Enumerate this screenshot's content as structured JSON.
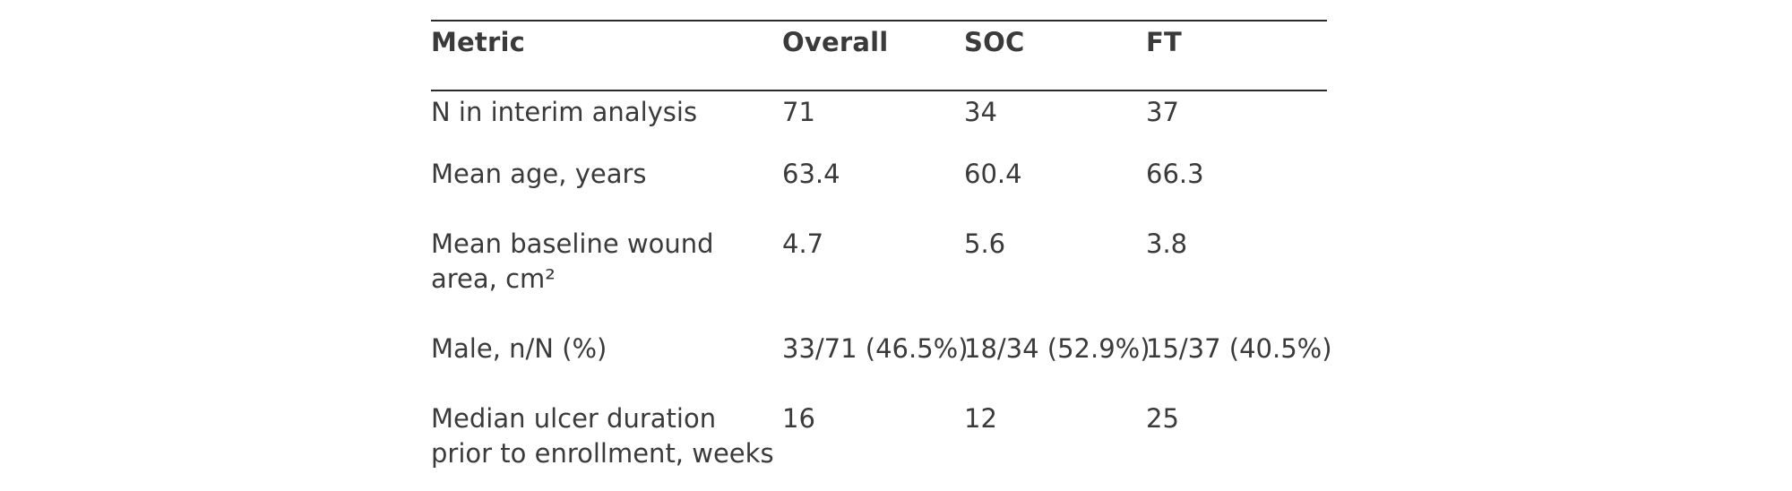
{
  "table": {
    "headers": [
      "Metric",
      "Overall",
      "SOC",
      "FT"
    ],
    "rows": [
      [
        "N in interim analysis",
        "71",
        "34",
        "37"
      ],
      [
        "Mean age, years",
        "63.4",
        "60.4",
        "66.3"
      ],
      [
        "Mean baseline wound area, cm²",
        "4.7",
        "5.6",
        "3.8"
      ],
      [
        "Male, n/N (%)",
        "33/71 (46.5%)",
        "18/34 (52.9%)",
        "15/37 (40.5%)"
      ],
      [
        "Median ulcer duration prior to enrollment, weeks",
        "16",
        "12",
        "25"
      ]
    ],
    "metric_lines": [
      [
        "N in interim analysis"
      ],
      [
        "Mean age, years"
      ],
      [
        "Mean baseline wound",
        "area, cm²"
      ],
      [
        "Male, n/N (%)"
      ],
      [
        "Median ulcer duration",
        "prior to enrollment, weeks"
      ]
    ]
  },
  "colors": {
    "text": "#3a3a3a",
    "rule": "#2a2a2a",
    "background": "#ffffff"
  }
}
